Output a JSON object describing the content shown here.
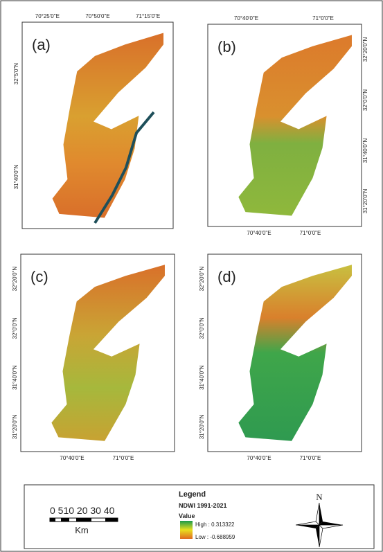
{
  "panels": [
    {
      "label": "(a)",
      "top_labels": [
        "70°25'0\"E",
        "70°50'0\"E",
        "71°15'0\"E"
      ],
      "left_labels": [
        "32°5'0\"N",
        "31°40'0\"N"
      ],
      "right_labels": [],
      "bottom_labels": []
    },
    {
      "label": "(b)",
      "top_labels": [
        "70°40'0\"E",
        "71°0'0\"E"
      ],
      "left_labels": [],
      "right_labels": [
        "32°20'0\"N",
        "32°0'0\"N",
        "31°40'0\"N",
        "31°20'0\"N"
      ],
      "bottom_labels": [
        "70°40'0\"E",
        "71°0'0\"E"
      ]
    },
    {
      "label": "(c)",
      "top_labels": [],
      "left_labels": [
        "32°20'0\"N",
        "32°0'0\"N",
        "31°40'0\"N",
        "31°20'0\"N"
      ],
      "right_labels": [],
      "bottom_labels": [
        "70°40'0\"E",
        "71°0'0\"E"
      ]
    },
    {
      "label": "(d)",
      "top_labels": [],
      "left_labels": [
        "32°20'0\"N",
        "32°0'0\"N",
        "31°40'0\"N",
        "31°20'0\"N"
      ],
      "right_labels": [],
      "bottom_labels": [
        "70°40'0\"E",
        "71°0'0\"E"
      ]
    }
  ],
  "legend": {
    "title": "Legend",
    "layer": "NDWI 1991-2021",
    "field": "Value",
    "high": "High : 0.313322",
    "low": "Low : -0.688959"
  },
  "scale_bar": {
    "ticks": "0 510 20 30 40",
    "unit": "Km"
  },
  "north": "N"
}
